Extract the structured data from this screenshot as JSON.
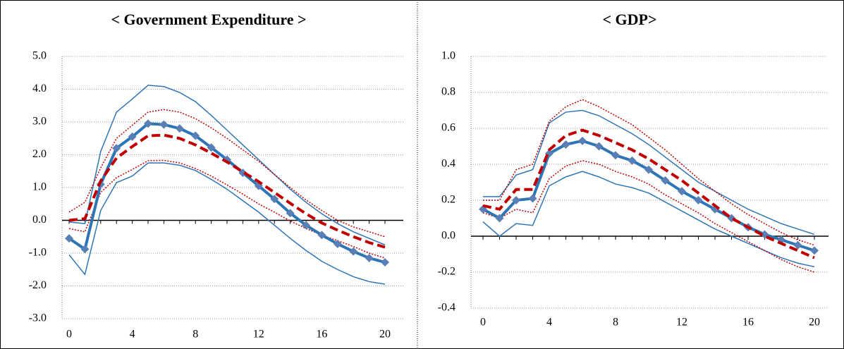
{
  "chart_data": [
    {
      "type": "line",
      "title": "< Government Expenditure >",
      "x": [
        0,
        1,
        2,
        3,
        4,
        5,
        6,
        7,
        8,
        9,
        10,
        11,
        12,
        13,
        14,
        15,
        16,
        17,
        18,
        19,
        20
      ],
      "xticks": [
        0,
        4,
        8,
        12,
        16,
        20
      ],
      "ylim": [
        -3,
        5
      ],
      "yticks": [
        {
          "value": -3,
          "label": "-3.0"
        },
        {
          "value": -2,
          "label": "-2.0"
        },
        {
          "value": -1,
          "label": "-1.0"
        },
        {
          "value": 0,
          "label": "0.0"
        },
        {
          "value": 1,
          "label": "1.0"
        },
        {
          "value": 2,
          "label": "2.0"
        },
        {
          "value": 3,
          "label": "3.0"
        },
        {
          "value": 4,
          "label": "4.0"
        },
        {
          "value": 5,
          "label": "5.0"
        }
      ],
      "grid": true,
      "series": [
        {
          "color": "#2e75b6",
          "style": "solid",
          "width": 1.5,
          "values": [
            -0.05,
            -0.1,
            2.1,
            3.3,
            3.7,
            4.12,
            4.08,
            3.9,
            3.62,
            3.2,
            2.75,
            2.3,
            1.85,
            1.4,
            0.95,
            0.55,
            0.2,
            -0.1,
            -0.35,
            -0.55,
            -0.75
          ]
        },
        {
          "color": "#2e75b6",
          "style": "solid",
          "width": 1.5,
          "values": [
            -1.05,
            -1.65,
            0.3,
            1.15,
            1.35,
            1.75,
            1.75,
            1.68,
            1.52,
            1.25,
            0.95,
            0.6,
            0.25,
            -0.15,
            -0.55,
            -0.92,
            -1.25,
            -1.5,
            -1.72,
            -1.87,
            -1.95
          ]
        },
        {
          "color": "#c00000",
          "style": "dotted",
          "width": 1.5,
          "values": [
            0.25,
            0.55,
            1.6,
            2.5,
            2.9,
            3.3,
            3.38,
            3.3,
            3.1,
            2.82,
            2.5,
            2.15,
            1.8,
            1.4,
            1.0,
            0.62,
            0.3,
            0.0,
            -0.2,
            -0.35,
            -0.5
          ]
        },
        {
          "color": "#c00000",
          "style": "dotted",
          "width": 1.5,
          "values": [
            -0.25,
            -0.35,
            0.85,
            1.3,
            1.55,
            1.82,
            1.83,
            1.75,
            1.58,
            1.35,
            1.08,
            0.8,
            0.5,
            0.25,
            -0.02,
            -0.25,
            -0.45,
            -0.62,
            -0.8,
            -1.0,
            -1.15
          ]
        },
        {
          "color": "#2e75b6",
          "style": "solid",
          "width": 4,
          "marker": "diamond",
          "marker_color": "#5a7fb5",
          "values": [
            -0.55,
            -0.88,
            1.1,
            2.2,
            2.55,
            2.95,
            2.92,
            2.8,
            2.58,
            2.22,
            1.85,
            1.45,
            1.05,
            0.65,
            0.22,
            -0.15,
            -0.45,
            -0.72,
            -0.95,
            -1.15,
            -1.28
          ]
        },
        {
          "color": "#c00000",
          "style": "dashed",
          "width": 4,
          "values": [
            0.0,
            0.05,
            1.2,
            1.9,
            2.25,
            2.58,
            2.6,
            2.5,
            2.3,
            2.05,
            1.78,
            1.48,
            1.18,
            0.85,
            0.52,
            0.2,
            -0.08,
            -0.3,
            -0.5,
            -0.68,
            -0.82
          ]
        }
      ]
    },
    {
      "type": "line",
      "title": "< GDP>",
      "x": [
        0,
        1,
        2,
        3,
        4,
        5,
        6,
        7,
        8,
        9,
        10,
        11,
        12,
        13,
        14,
        15,
        16,
        17,
        18,
        19,
        20
      ],
      "xticks": [
        0,
        4,
        8,
        12,
        16,
        20
      ],
      "ylim": [
        -0.4,
        1.0
      ],
      "yticks": [
        {
          "value": -0.4,
          "label": "-0.4"
        },
        {
          "value": -0.2,
          "label": "-0.2"
        },
        {
          "value": 0,
          "label": "0.0"
        },
        {
          "value": 0.2,
          "label": "0.2"
        },
        {
          "value": 0.4,
          "label": "0.4"
        },
        {
          "value": 0.6,
          "label": "0.6"
        },
        {
          "value": 0.8,
          "label": "0.8"
        },
        {
          "value": 1.0,
          "label": "1.0"
        }
      ],
      "grid": true,
      "series": [
        {
          "color": "#2e75b6",
          "style": "solid",
          "width": 1.5,
          "values": [
            0.22,
            0.22,
            0.34,
            0.37,
            0.63,
            0.69,
            0.7,
            0.67,
            0.62,
            0.57,
            0.51,
            0.44,
            0.37,
            0.3,
            0.25,
            0.2,
            0.15,
            0.11,
            0.07,
            0.04,
            0.01
          ]
        },
        {
          "color": "#2e75b6",
          "style": "solid",
          "width": 1.5,
          "values": [
            0.08,
            0.0,
            0.07,
            0.06,
            0.28,
            0.33,
            0.36,
            0.33,
            0.29,
            0.27,
            0.24,
            0.19,
            0.14,
            0.09,
            0.04,
            0.0,
            -0.04,
            -0.08,
            -0.12,
            -0.15,
            -0.17
          ]
        },
        {
          "color": "#c00000",
          "style": "dotted",
          "width": 1.5,
          "values": [
            0.2,
            0.2,
            0.37,
            0.4,
            0.64,
            0.72,
            0.76,
            0.72,
            0.67,
            0.62,
            0.55,
            0.48,
            0.4,
            0.32,
            0.25,
            0.18,
            0.12,
            0.07,
            0.02,
            -0.02,
            -0.05
          ]
        },
        {
          "color": "#c00000",
          "style": "dotted",
          "width": 1.5,
          "values": [
            0.13,
            0.1,
            0.15,
            0.13,
            0.32,
            0.39,
            0.42,
            0.4,
            0.36,
            0.33,
            0.29,
            0.23,
            0.18,
            0.13,
            0.07,
            0.02,
            -0.03,
            -0.08,
            -0.13,
            -0.17,
            -0.2
          ]
        },
        {
          "color": "#2e75b6",
          "style": "solid",
          "width": 4,
          "marker": "diamond",
          "marker_color": "#5a7fb5",
          "values": [
            0.15,
            0.1,
            0.2,
            0.21,
            0.46,
            0.51,
            0.53,
            0.5,
            0.45,
            0.42,
            0.37,
            0.31,
            0.25,
            0.2,
            0.15,
            0.1,
            0.05,
            0.01,
            -0.02,
            -0.05,
            -0.08
          ]
        },
        {
          "color": "#c00000",
          "style": "dashed",
          "width": 4,
          "values": [
            0.17,
            0.15,
            0.26,
            0.26,
            0.48,
            0.56,
            0.59,
            0.56,
            0.52,
            0.48,
            0.43,
            0.37,
            0.31,
            0.24,
            0.17,
            0.1,
            0.05,
            0.0,
            -0.04,
            -0.08,
            -0.12
          ]
        }
      ]
    }
  ]
}
